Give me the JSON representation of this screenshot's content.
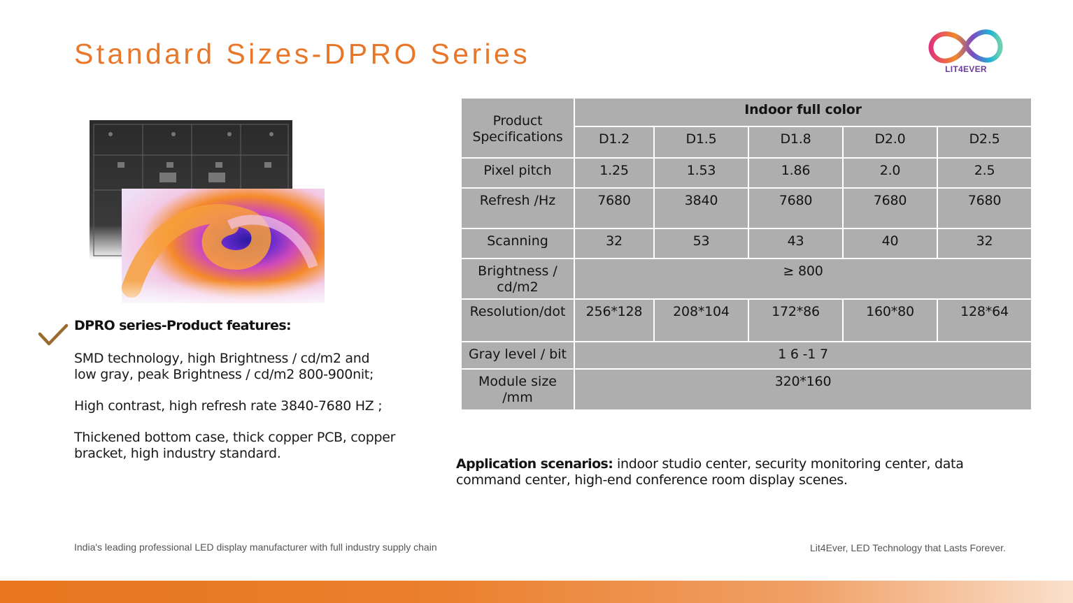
{
  "header": {
    "title": "Standard Sizes-DPRO Series",
    "logo": {
      "icon": "infinity-logo-icon",
      "brand": "LIT4EVER"
    }
  },
  "image": {
    "icon": "led-module-panel-photo"
  },
  "features": {
    "check_icon": "checkmark-icon",
    "heading": "DPRO series-Product features:",
    "paragraphs": [
      [
        "SMD technology, high Brightness / cd/m2 and",
        "low gray, peak Brightness / cd/m2 800-900nit;"
      ],
      [
        "High contrast, high refresh rate 3840-7680 HZ ;"
      ],
      [
        "Thickened bottom case, thick copper PCB, copper",
        "bracket, high industry standard."
      ]
    ]
  },
  "spec_table": {
    "corner": [
      "Product",
      "Specifications"
    ],
    "group_header": "Indoor full color",
    "models": [
      "D1.2",
      "D1.5",
      "D1.8",
      "D2.0",
      "D2.5"
    ],
    "rows": [
      {
        "label": [
          "Pixel pitch"
        ],
        "values": [
          "1.25",
          "1.53",
          "1.86",
          "2.0",
          "2.5"
        ]
      },
      {
        "label": [
          "Refresh /Hz"
        ],
        "values": [
          "7680",
          "3840",
          "7680",
          "7680",
          "7680"
        ]
      },
      {
        "label": [
          "Scanning"
        ],
        "values": [
          "32",
          "53",
          "43",
          "40",
          "32"
        ]
      },
      {
        "label": [
          "Brightness /",
          "cd/m2"
        ],
        "span_value": "≥ 800"
      },
      {
        "label": [
          "Resolution/dot"
        ],
        "values": [
          "256*128",
          "208*104",
          "172*86",
          "160*80",
          "128*64"
        ]
      },
      {
        "label": [
          "Gray level / bit"
        ],
        "span_value": "1 6 -1 7"
      },
      {
        "label": [
          "Module size",
          "/mm"
        ],
        "span_value": "320*160"
      }
    ]
  },
  "application": {
    "label": "Application scenarios:",
    "text": " indoor studio center, security monitoring center, data command center, high-end conference room display scenes."
  },
  "footer": {
    "left": "India's leading professional LED display manufacturer with full industry supply chain",
    "right": "Lit4Ever, LED Technology that Lasts Forever."
  },
  "colors": {
    "accent": "#e8772a",
    "table_cell": "#aeaeae",
    "checkmark": "#9a6a2e"
  }
}
